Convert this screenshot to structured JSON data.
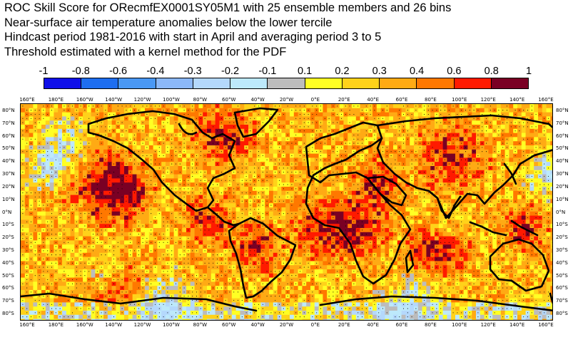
{
  "title_lines": [
    "ROC Skill Score for ORecmfEX0001SY05M1 with 25 ensemble members and 26 bins",
    "Near-surface air temperature anomalies below the lower tercile",
    "Hindcast period 1981-2016 with start in April and averaging period  3 to  5",
    "Threshold estimated with a kernel method for the PDF"
  ],
  "colorbar": {
    "labels": [
      "-1",
      "-0.8",
      "-0.6",
      "-0.4",
      "-0.3",
      "-0.2",
      "-0.1",
      "0.1",
      "0.2",
      "0.3",
      "0.4",
      "0.6",
      "0.8",
      "1"
    ],
    "colors": [
      "#1010e8",
      "#1e6ef0",
      "#4a98f4",
      "#8cb8f8",
      "#b4d8fc",
      "#bde9fb",
      "#bcbcbc",
      "#ffff24",
      "#ffd21a",
      "#ffaa14",
      "#ff7800",
      "#ff1a00",
      "#7a0024"
    ]
  },
  "axes": {
    "x_ticks": [
      "160°E",
      "180°E",
      "160°W",
      "140°W",
      "120°W",
      "100°W",
      "80°W",
      "60°W",
      "40°W",
      "20°W",
      "0°E",
      "20°E",
      "40°E",
      "60°E",
      "80°E",
      "100°E",
      "120°E",
      "140°E",
      "160°E"
    ],
    "y_ticks": [
      "80°N",
      "70°N",
      "60°N",
      "50°N",
      "40°N",
      "30°N",
      "20°N",
      "10°N",
      "0°N",
      "10°S",
      "20°S",
      "30°S",
      "40°S",
      "50°S",
      "60°S",
      "70°S",
      "80°S"
    ]
  }
}
